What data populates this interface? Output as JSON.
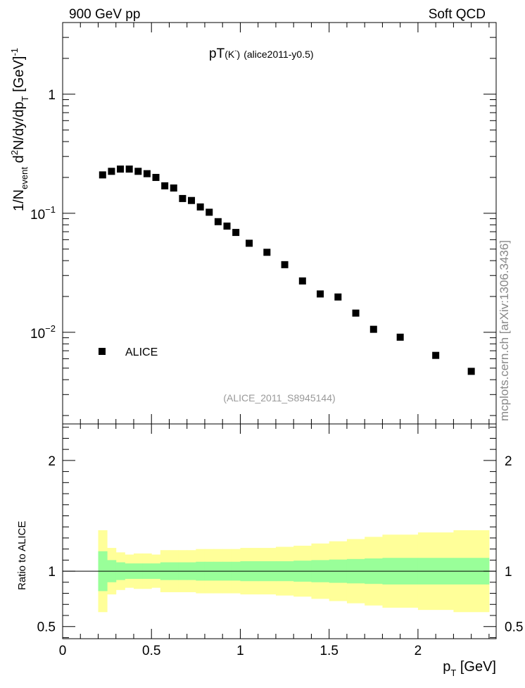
{
  "header": {
    "left": "900 GeV pp",
    "right": "Soft QCD"
  },
  "side_label": "mcplots.cern.ch [arXiv:1306.3436]",
  "chart_data": [
    {
      "type": "scatter",
      "title_main": "pT",
      "title_particle": "(K",
      "title_particle_sup": "-",
      "title_particle_close": ")",
      "title_tag": "(alice2011-y0.5)",
      "analysis_id": "(ALICE_2011_S8945144)",
      "ylabel": {
        "p1": "1/N",
        "p1_sub": "event",
        "p2": " d",
        "p2_sup": "2",
        "p3": "N/dy/dp",
        "p3_sub": "T",
        "p4": " [GeV]",
        "p4_sup": "-1"
      },
      "yscale": "log",
      "ylim": [
        0.0017,
        4.0
      ],
      "yticks": [
        {
          "value": 1,
          "label": "1"
        },
        {
          "value": 0.1,
          "base": "10",
          "exp": "−1"
        },
        {
          "value": 0.01,
          "base": "10",
          "exp": "−2"
        }
      ],
      "xlim": [
        0,
        2.44
      ],
      "legend": {
        "label": "ALICE",
        "position": "bottom-left"
      },
      "series": [
        {
          "name": "ALICE",
          "x": [
            0.225,
            0.275,
            0.325,
            0.375,
            0.425,
            0.475,
            0.525,
            0.575,
            0.625,
            0.675,
            0.725,
            0.775,
            0.825,
            0.875,
            0.925,
            0.975,
            1.05,
            1.15,
            1.25,
            1.35,
            1.45,
            1.55,
            1.65,
            1.75,
            1.9,
            2.1,
            2.3
          ],
          "y": [
            0.21,
            0.225,
            0.235,
            0.235,
            0.225,
            0.215,
            0.2,
            0.17,
            0.163,
            0.133,
            0.128,
            0.113,
            0.102,
            0.085,
            0.078,
            0.069,
            0.056,
            0.047,
            0.037,
            0.027,
            0.021,
            0.0198,
            0.0145,
            0.0106,
            0.0091,
            0.0064,
            0.0047
          ]
        }
      ]
    },
    {
      "type": "area",
      "ylabel": "Ratio to ALICE",
      "xlabel": "p",
      "xlabel_sub": "T",
      "xlabel_unit": " [GeV]",
      "ylim": [
        0.39,
        2.33
      ],
      "yticks": [
        {
          "value": 0.5,
          "label": "0.5"
        },
        {
          "value": 1,
          "label": "1"
        },
        {
          "value": 2,
          "label": "2"
        }
      ],
      "xlim": [
        0,
        2.44
      ],
      "xticks": [
        {
          "value": 0,
          "label": "0"
        },
        {
          "value": 0.5,
          "label": "0.5"
        },
        {
          "value": 1,
          "label": "1"
        },
        {
          "value": 1.5,
          "label": "1.5"
        },
        {
          "value": 2,
          "label": "2"
        }
      ],
      "reference_line": 1,
      "bins": [
        0.2,
        0.25,
        0.3,
        0.35,
        0.4,
        0.45,
        0.5,
        0.55,
        0.6,
        0.65,
        0.7,
        0.75,
        0.8,
        0.85,
        0.9,
        0.95,
        1.0,
        1.1,
        1.2,
        1.3,
        1.4,
        1.5,
        1.6,
        1.7,
        1.8,
        2.0,
        2.2,
        2.4
      ],
      "bands": [
        {
          "name": "stat",
          "color": "#99ff99",
          "half_width": [
            0.18,
            0.1,
            0.08,
            0.07,
            0.07,
            0.07,
            0.07,
            0.08,
            0.08,
            0.08,
            0.08,
            0.085,
            0.085,
            0.085,
            0.085,
            0.085,
            0.09,
            0.09,
            0.09,
            0.095,
            0.1,
            0.105,
            0.11,
            0.115,
            0.12,
            0.12,
            0.12
          ]
        },
        {
          "name": "total",
          "color": "#ffff99",
          "half_width": [
            0.37,
            0.21,
            0.17,
            0.15,
            0.16,
            0.16,
            0.15,
            0.19,
            0.19,
            0.19,
            0.19,
            0.2,
            0.2,
            0.2,
            0.2,
            0.2,
            0.21,
            0.21,
            0.22,
            0.23,
            0.25,
            0.27,
            0.29,
            0.31,
            0.33,
            0.35,
            0.37
          ]
        }
      ]
    }
  ]
}
